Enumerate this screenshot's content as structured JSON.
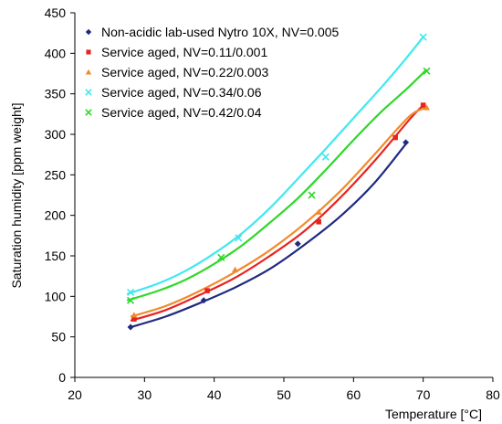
{
  "chart_data": {
    "type": "scatter",
    "title": "",
    "xlabel": "Temperature [°C]",
    "ylabel": "Saturation humidity [ppm weight]",
    "xlim": [
      20,
      80
    ],
    "ylim": [
      0,
      450
    ],
    "x_ticks": [
      "20",
      "30",
      "40",
      "50",
      "60",
      "70",
      "80"
    ],
    "y_ticks": [
      "0",
      "50",
      "100",
      "150",
      "200",
      "250",
      "300",
      "350",
      "400",
      "450"
    ],
    "grid": false,
    "legend_position": "top-left",
    "series": [
      {
        "name": "Non-acidic lab-used Nytro 10X, NV=0.005",
        "color": "#1f2a80",
        "marker": "diamond",
        "points": [
          [
            28,
            62
          ],
          [
            38.5,
            95
          ],
          [
            52,
            165
          ],
          [
            67.5,
            290
          ]
        ],
        "fit": [
          [
            28,
            62
          ],
          [
            33,
            75
          ],
          [
            38,
            92
          ],
          [
            43,
            111
          ],
          [
            48,
            134
          ],
          [
            53,
            164
          ],
          [
            58,
            198
          ],
          [
            63,
            240
          ],
          [
            67.5,
            288
          ]
        ]
      },
      {
        "name": "Service aged, NV=0.11/0.001",
        "color": "#e8231e",
        "marker": "square",
        "points": [
          [
            28.5,
            72
          ],
          [
            39,
            107
          ],
          [
            55,
            192
          ],
          [
            66,
            296
          ],
          [
            70,
            336
          ]
        ],
        "fit": [
          [
            28,
            70
          ],
          [
            33,
            83
          ],
          [
            38,
            102
          ],
          [
            43,
            123
          ],
          [
            48,
            150
          ],
          [
            53,
            181
          ],
          [
            58,
            221
          ],
          [
            63,
            267
          ],
          [
            68,
            318
          ],
          [
            70,
            336
          ]
        ]
      },
      {
        "name": "Service aged, NV=0.22/0.003",
        "color": "#f08a2c",
        "marker": "triangle",
        "points": [
          [
            28.5,
            77
          ],
          [
            43,
            133
          ],
          [
            55,
            204
          ],
          [
            70.5,
            333
          ]
        ],
        "fit": [
          [
            28,
            75
          ],
          [
            33,
            88
          ],
          [
            38,
            107
          ],
          [
            43,
            130
          ],
          [
            48,
            157
          ],
          [
            53,
            190
          ],
          [
            58,
            229
          ],
          [
            63,
            275
          ],
          [
            68,
            322
          ],
          [
            70.5,
            333
          ]
        ]
      },
      {
        "name": "Service aged, NV=0.34/0.06",
        "color": "#3fe8ef",
        "marker": "x",
        "points": [
          [
            28,
            105
          ],
          [
            43.5,
            172
          ],
          [
            56,
            272
          ],
          [
            70,
            420
          ]
        ],
        "fit": [
          [
            27.5,
            103
          ],
          [
            32,
            116
          ],
          [
            36,
            132
          ],
          [
            40,
            153
          ],
          [
            44,
            178
          ],
          [
            48,
            209
          ],
          [
            52,
            245
          ],
          [
            56,
            282
          ],
          [
            60,
            320
          ],
          [
            64,
            358
          ],
          [
            67,
            388
          ],
          [
            70,
            420
          ]
        ]
      },
      {
        "name": "Service aged, NV=0.42/0.04",
        "color": "#2fd82a",
        "marker": "x",
        "points": [
          [
            28,
            95
          ],
          [
            41,
            148
          ],
          [
            54,
            225
          ],
          [
            70.5,
            378
          ]
        ],
        "fit": [
          [
            27.5,
            95
          ],
          [
            32,
            107
          ],
          [
            36,
            121
          ],
          [
            40,
            140
          ],
          [
            44,
            163
          ],
          [
            48,
            191
          ],
          [
            52,
            221
          ],
          [
            56,
            256
          ],
          [
            60,
            293
          ],
          [
            64,
            328
          ],
          [
            67.5,
            355
          ],
          [
            70.5,
            380
          ]
        ]
      }
    ]
  }
}
